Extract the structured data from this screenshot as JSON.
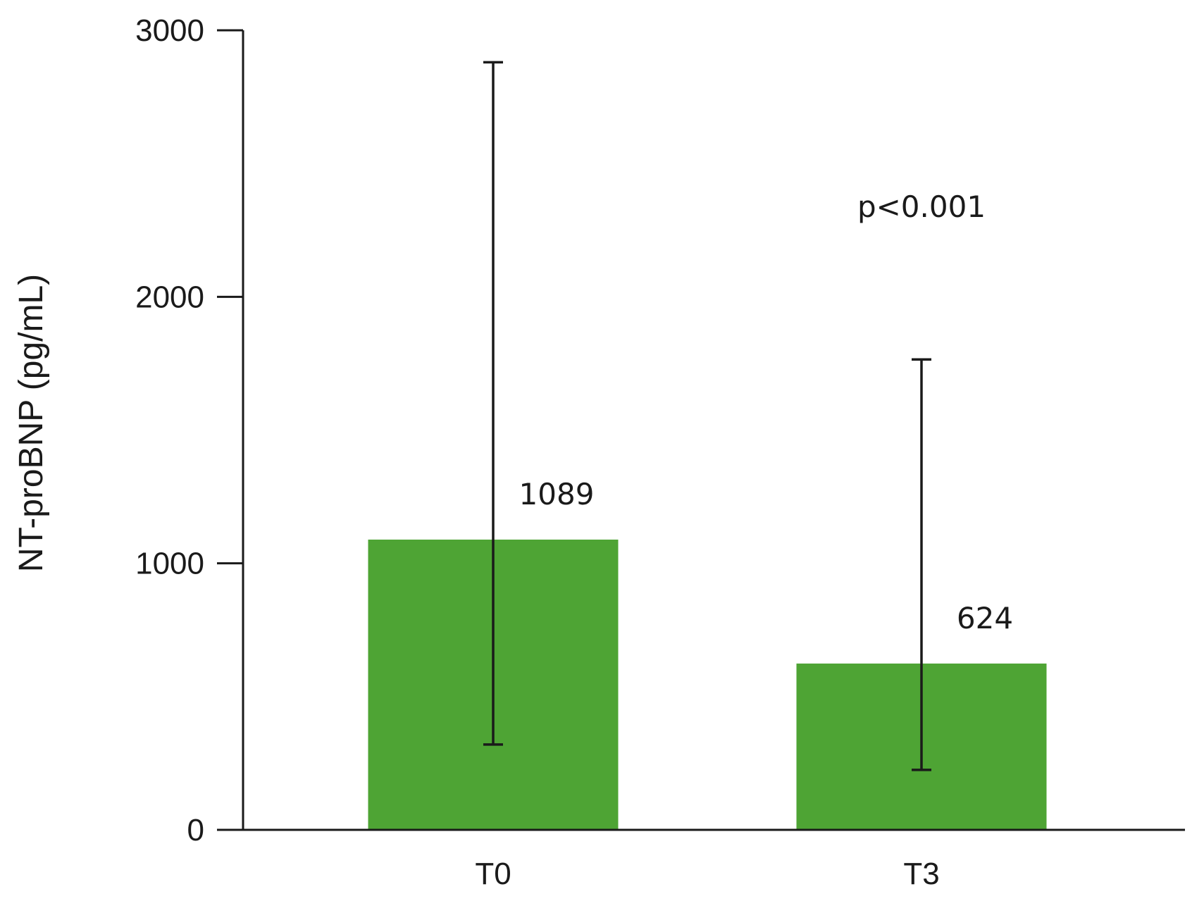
{
  "chart_data": {
    "type": "bar",
    "categories": [
      "T0",
      "T3"
    ],
    "values": [
      1089,
      624
    ],
    "data_labels": [
      "1089",
      "624"
    ],
    "error_bars": [
      {
        "low": 320,
        "high": 2880
      },
      {
        "low": 225,
        "high": 1765
      }
    ],
    "title": "",
    "xlabel": "",
    "ylabel": "NT-proBNP (pg/mL)",
    "ylim": [
      0,
      3000
    ],
    "yticks": [
      0,
      1000,
      2000,
      3000
    ],
    "ytick_labels": [
      "0",
      "1000",
      "2000",
      "3000"
    ],
    "annotation": "p<0.001",
    "bar_color": "#4ea434",
    "axis_color": "#1a1a1a",
    "grid": false,
    "legend": "none"
  }
}
